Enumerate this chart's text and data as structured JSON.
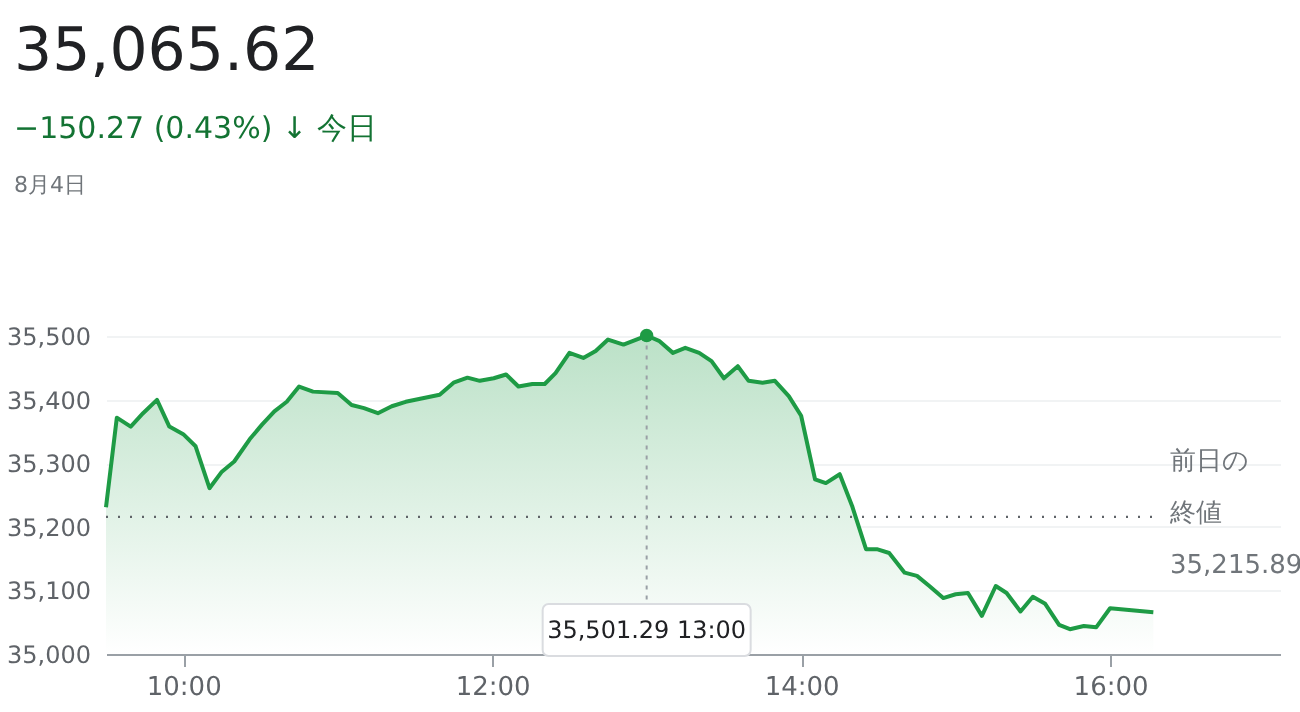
{
  "chart_data": {
    "type": "area",
    "title": "35,065.62",
    "subtitle": "−150.27 (0.43%) ↓ 今日",
    "annotations": [
      "8月4日",
      {
        "text": "35,501.29 13:00",
        "x": 13.0,
        "y": 35501.29
      },
      "35,215.89"
    ],
    "x": [
      9.5,
      9.57,
      9.66,
      9.74,
      9.83,
      9.91,
      10.0,
      10.08,
      10.17,
      10.25,
      10.33,
      10.43,
      10.51,
      10.59,
      10.67,
      10.75,
      10.84,
      11.0,
      11.09,
      11.17,
      11.26,
      11.35,
      11.44,
      11.66,
      11.75,
      11.84,
      11.92,
      12.01,
      12.09,
      12.17,
      12.26,
      12.34,
      12.41,
      12.5,
      12.59,
      12.67,
      12.75,
      12.85,
      13.0,
      13.08,
      13.17,
      13.25,
      13.34,
      13.42,
      13.5,
      13.59,
      13.66,
      13.75,
      13.83,
      13.92,
      14.0,
      14.09,
      14.16,
      14.25,
      14.33,
      14.42,
      14.49,
      14.57,
      14.67,
      14.75,
      14.83,
      14.92,
      15.0,
      15.08,
      15.17,
      15.26,
      15.33,
      15.42,
      15.5,
      15.58,
      15.67,
      15.74,
      15.83,
      15.91,
      16.0,
      16.28
    ],
    "series": [
      {
        "color": "#1e9b45",
        "values": [
          35231,
          35372,
          35358,
          35379,
          35400,
          35358,
          35346,
          35327,
          35261,
          35287,
          35303,
          35338,
          35361,
          35382,
          35397,
          35421,
          35413,
          35411,
          35392,
          35387,
          35379,
          35390,
          35397,
          35408,
          35427,
          35435,
          35430,
          35434,
          35440,
          35421,
          35425,
          35425,
          35442,
          35474,
          35466,
          35477,
          35495,
          35487,
          35501.29,
          35493,
          35474,
          35482,
          35474,
          35461,
          35434,
          35453,
          35430,
          35427,
          35430,
          35406,
          35375,
          35275,
          35269,
          35283,
          35233,
          35165,
          35165,
          35159,
          35128,
          35123,
          35107,
          35088,
          35094,
          35096,
          35060,
          35107,
          35096,
          35067,
          35090,
          35079,
          35046,
          35039,
          35044,
          35042,
          35072,
          35065.62
        ]
      }
    ],
    "xlim": [
      9.5,
      17.1
    ],
    "ylim": [
      35000,
      35510
    ],
    "xticks": [
      {
        "value": 10,
        "label": "10:00"
      },
      {
        "value": 12,
        "label": "12:00"
      },
      {
        "value": 14,
        "label": "14:00"
      },
      {
        "value": 16,
        "label": "16:00"
      }
    ],
    "yticks": [
      {
        "value": 35000,
        "label": "35,000"
      },
      {
        "value": 35100,
        "label": "35,100"
      },
      {
        "value": 35200,
        "label": "35,200"
      },
      {
        "value": 35300,
        "label": "35,300"
      },
      {
        "value": 35400,
        "label": "35,400"
      },
      {
        "value": 35500,
        "label": "35,500"
      }
    ],
    "ref_lines": [
      {
        "axis": "y",
        "value": 35215.89,
        "label": "前日の終値",
        "color": "#5f6368",
        "line_style": "dotted"
      }
    ],
    "grid": "y",
    "marker": "none",
    "line_style": "solid"
  }
}
